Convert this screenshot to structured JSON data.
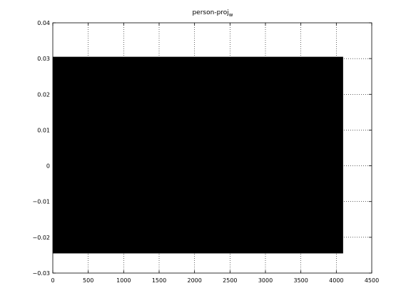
{
  "chart_data": {
    "type": "area",
    "title": "person-proj",
    "title_subscript": "w",
    "xlabel": "",
    "ylabel": "",
    "xlim": [
      0,
      4500
    ],
    "ylim": [
      -0.03,
      0.04
    ],
    "xticks": [
      0,
      500,
      1000,
      1500,
      2000,
      2500,
      3000,
      3500,
      4000,
      4500
    ],
    "yticks": [
      -0.03,
      -0.02,
      -0.01,
      0,
      0.01,
      0.02,
      0.03,
      0.04
    ],
    "xtick_labels": [
      "0",
      "500",
      "1000",
      "1500",
      "2000",
      "2500",
      "3000",
      "3500",
      "4000",
      "4500"
    ],
    "ytick_labels": [
      "−0.03",
      "−0.02",
      "−0.01",
      "0",
      "0.01",
      "0.02",
      "0.03",
      "0.04"
    ],
    "grid": true,
    "series": [
      {
        "x_range": [
          0,
          4096
        ],
        "y_max": 0.0305,
        "y_min": -0.0245,
        "color": "#000000"
      }
    ]
  }
}
